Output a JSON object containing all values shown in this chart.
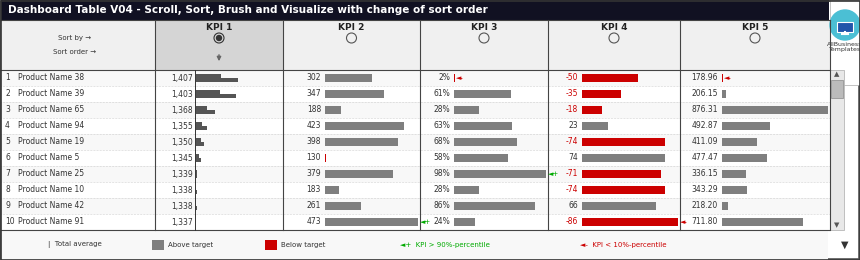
{
  "title": "Dashboard Table V04 - Scroll, Sort, Brush and Visualize with change of sort order",
  "kpi_headers": [
    "KPI 1",
    "KPI 2",
    "KPI 3",
    "KPI 4",
    "KPI 5"
  ],
  "rows": [
    {
      "idx": 1,
      "name": "Product Name 38",
      "kpi1": "1,407",
      "kpi2": "302",
      "kpi3": "2%",
      "kpi4": "-50",
      "kpi5": "178.96",
      "kpi4_neg": true,
      "kpi3_arrow": true,
      "kpi3_arrow_up": false,
      "kpi4_arrow": false,
      "kpi2_arrow": false,
      "kpi2_arrow_up": false,
      "kpi10_arrow": false
    },
    {
      "idx": 2,
      "name": "Product Name 39",
      "kpi1": "1,403",
      "kpi2": "347",
      "kpi3": "61%",
      "kpi4": "-35",
      "kpi5": "206.15",
      "kpi4_neg": true,
      "kpi3_arrow": false,
      "kpi3_arrow_up": false,
      "kpi4_arrow": false,
      "kpi2_arrow": false,
      "kpi2_arrow_up": false,
      "kpi10_arrow": false
    },
    {
      "idx": 3,
      "name": "Product Name 65",
      "kpi1": "1,368",
      "kpi2": "188",
      "kpi3": "28%",
      "kpi4": "-18",
      "kpi5": "876.31",
      "kpi4_neg": true,
      "kpi3_arrow": false,
      "kpi3_arrow_up": false,
      "kpi4_arrow": false,
      "kpi2_arrow": false,
      "kpi2_arrow_up": false,
      "kpi10_arrow": false
    },
    {
      "idx": 4,
      "name": "Product Name 94",
      "kpi1": "1,355",
      "kpi2": "423",
      "kpi3": "63%",
      "kpi4": "23",
      "kpi5": "492.87",
      "kpi4_neg": false,
      "kpi3_arrow": false,
      "kpi3_arrow_up": false,
      "kpi4_arrow": false,
      "kpi2_arrow": false,
      "kpi2_arrow_up": false,
      "kpi10_arrow": false
    },
    {
      "idx": 5,
      "name": "Product Name 19",
      "kpi1": "1,350",
      "kpi2": "398",
      "kpi3": "68%",
      "kpi4": "-74",
      "kpi5": "411.09",
      "kpi4_neg": true,
      "kpi3_arrow": false,
      "kpi3_arrow_up": false,
      "kpi4_arrow": false,
      "kpi2_arrow": false,
      "kpi2_arrow_up": false,
      "kpi10_arrow": false
    },
    {
      "idx": 6,
      "name": "Product Name 5",
      "kpi1": "1,345",
      "kpi2": "130",
      "kpi3": "58%",
      "kpi4": "74",
      "kpi5": "477.47",
      "kpi4_neg": false,
      "kpi3_arrow": false,
      "kpi3_arrow_up": false,
      "kpi4_arrow": false,
      "kpi2_arrow": false,
      "kpi2_arrow_up": false,
      "kpi10_arrow": false
    },
    {
      "idx": 7,
      "name": "Product Name 25",
      "kpi1": "1,339",
      "kpi2": "379",
      "kpi3": "98%",
      "kpi4": "-71",
      "kpi5": "336.15",
      "kpi4_neg": true,
      "kpi3_arrow": true,
      "kpi3_arrow_up": true,
      "kpi4_arrow": false,
      "kpi2_arrow": false,
      "kpi2_arrow_up": false,
      "kpi10_arrow": false
    },
    {
      "idx": 8,
      "name": "Product Name 10",
      "kpi1": "1,338",
      "kpi2": "183",
      "kpi3": "28%",
      "kpi4": "-74",
      "kpi5": "343.29",
      "kpi4_neg": true,
      "kpi3_arrow": false,
      "kpi3_arrow_up": false,
      "kpi4_arrow": false,
      "kpi2_arrow": false,
      "kpi2_arrow_up": false,
      "kpi10_arrow": false
    },
    {
      "idx": 9,
      "name": "Product Name 42",
      "kpi1": "1,338",
      "kpi2": "261",
      "kpi3": "86%",
      "kpi4": "66",
      "kpi5": "218.20",
      "kpi4_neg": false,
      "kpi3_arrow": false,
      "kpi3_arrow_up": false,
      "kpi4_arrow": false,
      "kpi2_arrow": false,
      "kpi2_arrow_up": false,
      "kpi10_arrow": false
    },
    {
      "idx": 10,
      "name": "Product Name 91",
      "kpi1": "1,337",
      "kpi2": "473",
      "kpi3": "24%",
      "kpi4": "-86",
      "kpi5": "711.80",
      "kpi4_neg": true,
      "kpi3_arrow": false,
      "kpi3_arrow_up": false,
      "kpi4_arrow": true,
      "kpi2_arrow": true,
      "kpi2_arrow_up": true,
      "kpi10_arrow": true
    }
  ],
  "kpi1_vals": [
    1407,
    1403,
    1368,
    1355,
    1350,
    1345,
    1339,
    1338,
    1338,
    1337
  ],
  "kpi2_vals": [
    302,
    347,
    188,
    423,
    398,
    130,
    379,
    183,
    261,
    473
  ],
  "kpi3_vals": [
    2,
    61,
    28,
    63,
    68,
    58,
    98,
    28,
    86,
    24
  ],
  "kpi4_vals": [
    -50,
    -35,
    -18,
    23,
    -74,
    74,
    -71,
    -74,
    66,
    -86
  ],
  "kpi5_vals": [
    178.96,
    206.15,
    876.31,
    492.87,
    411.09,
    477.47,
    336.15,
    343.29,
    218.2,
    711.8
  ],
  "gray_color": "#7f7f7f",
  "red_color": "#cc0000",
  "green_color": "#00aa00",
  "dark_color": "#1a1a2e",
  "title_dark": "#111122"
}
